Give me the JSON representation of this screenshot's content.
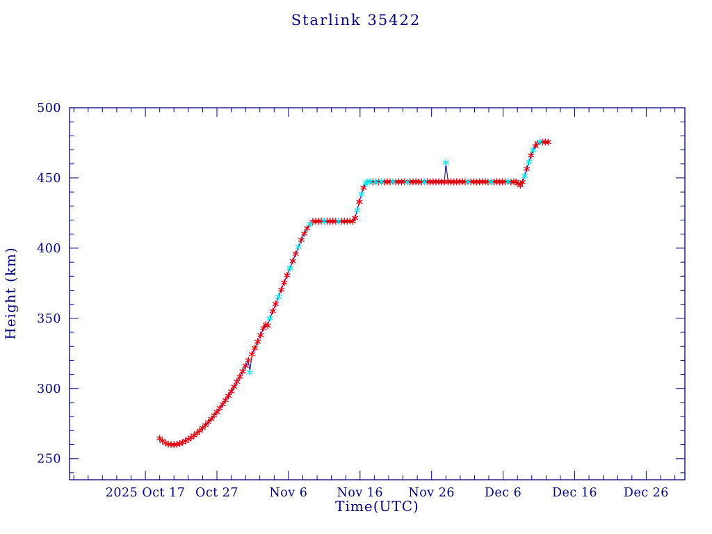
{
  "page": {
    "background": "#ffffff",
    "accent_color": "#000080"
  },
  "chart_data": {
    "type": "line",
    "title": "Starlink 35422",
    "xlabel": "Time(UTC)",
    "ylabel": "Height (km)",
    "x_unit": "days since 2025 Oct 17",
    "xlim": [
      -10.6,
      75.4
    ],
    "ylim": [
      235,
      500
    ],
    "grid": false,
    "legend": "none",
    "axis_color": "#000080",
    "line_color": "#000080",
    "marker_style": "asterisk",
    "marker_colors": [
      "#e8000d",
      "#00e5ee"
    ],
    "x_minor_step": 2,
    "y_minor_step": 10,
    "x_ticks": [
      {
        "v": 0,
        "label": "2025 Oct 17"
      },
      {
        "v": 10,
        "label": "Oct 27"
      },
      {
        "v": 20,
        "label": "Nov 6"
      },
      {
        "v": 30,
        "label": "Nov 16"
      },
      {
        "v": 40,
        "label": "Nov 26"
      },
      {
        "v": 50,
        "label": "Dec 6"
      },
      {
        "v": 60,
        "label": "Dec 16"
      },
      {
        "v": 70,
        "label": "Dec 26"
      }
    ],
    "y_ticks": [
      {
        "v": 250,
        "label": "250"
      },
      {
        "v": 300,
        "label": "300"
      },
      {
        "v": 350,
        "label": "350"
      },
      {
        "v": 400,
        "label": "400"
      },
      {
        "v": 450,
        "label": "450"
      },
      {
        "v": 500,
        "label": "500"
      }
    ],
    "points_format": [
      "day_offset",
      "height_km",
      "color_index (0=red,1=cyan)"
    ],
    "points": [
      [
        2.0,
        264.5,
        0
      ],
      [
        2.4,
        262.6,
        0
      ],
      [
        2.8,
        261.3,
        0
      ],
      [
        3.2,
        260.4,
        0
      ],
      [
        3.6,
        260.0,
        0
      ],
      [
        4.0,
        260.0,
        0
      ],
      [
        4.4,
        260.3,
        0
      ],
      [
        4.8,
        260.8,
        0
      ],
      [
        5.2,
        261.6,
        0
      ],
      [
        5.6,
        262.6,
        0
      ],
      [
        6.0,
        263.8,
        0
      ],
      [
        6.4,
        265.1,
        0
      ],
      [
        6.8,
        266.6,
        0
      ],
      [
        7.2,
        268.2,
        0
      ],
      [
        7.6,
        270.0,
        0
      ],
      [
        8.0,
        271.9,
        0
      ],
      [
        8.4,
        273.9,
        0
      ],
      [
        8.8,
        276.1,
        0
      ],
      [
        9.2,
        278.4,
        0
      ],
      [
        9.6,
        280.8,
        0
      ],
      [
        10.0,
        283.3,
        0
      ],
      [
        10.4,
        286.0,
        0
      ],
      [
        10.8,
        288.8,
        0
      ],
      [
        11.2,
        291.7,
        0
      ],
      [
        11.6,
        294.8,
        0
      ],
      [
        12.0,
        298.0,
        0
      ],
      [
        12.4,
        301.3,
        0
      ],
      [
        12.8,
        304.8,
        0
      ],
      [
        13.2,
        308.4,
        0
      ],
      [
        13.6,
        312.2,
        0
      ],
      [
        14.0,
        316.1,
        0
      ],
      [
        14.4,
        320.2,
        0
      ],
      [
        14.6,
        311.5,
        1
      ],
      [
        14.9,
        324.4,
        0
      ],
      [
        15.3,
        328.8,
        0
      ],
      [
        15.7,
        333.4,
        0
      ],
      [
        16.1,
        338.1,
        0
      ],
      [
        16.5,
        343.0,
        0
      ],
      [
        16.8,
        345.5,
        0
      ],
      [
        17.1,
        344.8,
        0
      ],
      [
        17.4,
        350.0,
        1
      ],
      [
        17.8,
        355.1,
        0
      ],
      [
        18.2,
        360.2,
        0
      ],
      [
        18.6,
        365.3,
        1
      ],
      [
        19.0,
        370.4,
        0
      ],
      [
        19.4,
        375.5,
        0
      ],
      [
        19.8,
        380.6,
        0
      ],
      [
        20.2,
        385.7,
        1
      ],
      [
        20.6,
        390.8,
        0
      ],
      [
        21.0,
        395.9,
        0
      ],
      [
        21.4,
        400.9,
        1
      ],
      [
        21.8,
        405.8,
        0
      ],
      [
        22.2,
        410.3,
        0
      ],
      [
        22.6,
        414.2,
        0
      ],
      [
        23.0,
        417.2,
        1
      ],
      [
        23.4,
        418.9,
        0
      ],
      [
        23.8,
        419.2,
        0
      ],
      [
        24.2,
        419.0,
        0
      ],
      [
        24.6,
        419.3,
        0
      ],
      [
        25.0,
        419.1,
        1
      ],
      [
        25.4,
        419.2,
        0
      ],
      [
        25.8,
        419.0,
        0
      ],
      [
        26.2,
        419.3,
        0
      ],
      [
        26.6,
        419.1,
        0
      ],
      [
        27.0,
        419.2,
        1
      ],
      [
        27.4,
        419.0,
        0
      ],
      [
        27.8,
        419.2,
        0
      ],
      [
        28.2,
        419.1,
        0
      ],
      [
        28.6,
        419.3,
        0
      ],
      [
        29.0,
        419.0,
        0
      ],
      [
        29.3,
        421.5,
        0
      ],
      [
        29.6,
        427.0,
        1
      ],
      [
        29.9,
        433.0,
        0
      ],
      [
        30.2,
        438.5,
        1
      ],
      [
        30.5,
        443.0,
        0
      ],
      [
        30.8,
        446.0,
        1
      ],
      [
        31.0,
        447.2,
        1
      ],
      [
        31.4,
        447.4,
        1
      ],
      [
        31.8,
        447.1,
        0
      ],
      [
        32.2,
        447.3,
        1
      ],
      [
        32.6,
        447.2,
        0
      ],
      [
        33.0,
        447.4,
        1
      ],
      [
        33.4,
        447.1,
        0
      ],
      [
        33.8,
        447.3,
        0
      ],
      [
        34.2,
        447.2,
        0
      ],
      [
        34.6,
        447.4,
        1
      ],
      [
        35.0,
        447.1,
        0
      ],
      [
        35.4,
        447.3,
        0
      ],
      [
        35.8,
        447.2,
        0
      ],
      [
        36.2,
        447.4,
        0
      ],
      [
        36.6,
        447.1,
        1
      ],
      [
        37.0,
        447.3,
        0
      ],
      [
        37.4,
        447.2,
        0
      ],
      [
        37.8,
        447.4,
        0
      ],
      [
        38.2,
        447.1,
        0
      ],
      [
        38.6,
        447.3,
        0
      ],
      [
        39.0,
        447.2,
        1
      ],
      [
        39.4,
        447.4,
        0
      ],
      [
        39.8,
        447.1,
        0
      ],
      [
        40.2,
        447.3,
        0
      ],
      [
        40.6,
        447.2,
        0
      ],
      [
        41.0,
        447.4,
        0
      ],
      [
        41.4,
        447.1,
        0
      ],
      [
        41.8,
        447.3,
        0
      ],
      [
        42.0,
        461.0,
        1
      ],
      [
        42.3,
        447.2,
        0
      ],
      [
        42.7,
        447.4,
        0
      ],
      [
        43.1,
        447.1,
        0
      ],
      [
        43.5,
        447.3,
        0
      ],
      [
        43.9,
        447.2,
        0
      ],
      [
        44.3,
        447.4,
        0
      ],
      [
        44.7,
        447.1,
        0
      ],
      [
        45.1,
        447.3,
        1
      ],
      [
        45.5,
        447.2,
        0
      ],
      [
        45.9,
        447.4,
        0
      ],
      [
        46.3,
        447.1,
        0
      ],
      [
        46.7,
        447.3,
        0
      ],
      [
        47.1,
        447.2,
        0
      ],
      [
        47.5,
        447.4,
        0
      ],
      [
        47.9,
        447.1,
        0
      ],
      [
        48.3,
        447.3,
        1
      ],
      [
        48.7,
        447.2,
        0
      ],
      [
        49.1,
        447.4,
        0
      ],
      [
        49.5,
        447.1,
        0
      ],
      [
        49.9,
        447.3,
        0
      ],
      [
        50.3,
        447.2,
        0
      ],
      [
        50.7,
        447.4,
        1
      ],
      [
        51.1,
        447.1,
        0
      ],
      [
        51.5,
        447.3,
        0
      ],
      [
        51.8,
        447.2,
        0
      ],
      [
        52.1,
        446.0,
        0
      ],
      [
        52.4,
        444.8,
        0
      ],
      [
        52.7,
        447.0,
        0
      ],
      [
        53.0,
        451.5,
        1
      ],
      [
        53.3,
        456.5,
        0
      ],
      [
        53.6,
        461.5,
        1
      ],
      [
        53.9,
        466.0,
        0
      ],
      [
        54.2,
        469.8,
        1
      ],
      [
        54.5,
        472.8,
        0
      ],
      [
        54.8,
        474.8,
        0
      ],
      [
        55.1,
        475.6,
        1
      ],
      [
        55.5,
        475.5,
        0
      ],
      [
        55.9,
        475.6,
        0
      ],
      [
        56.3,
        475.5,
        0
      ]
    ]
  }
}
